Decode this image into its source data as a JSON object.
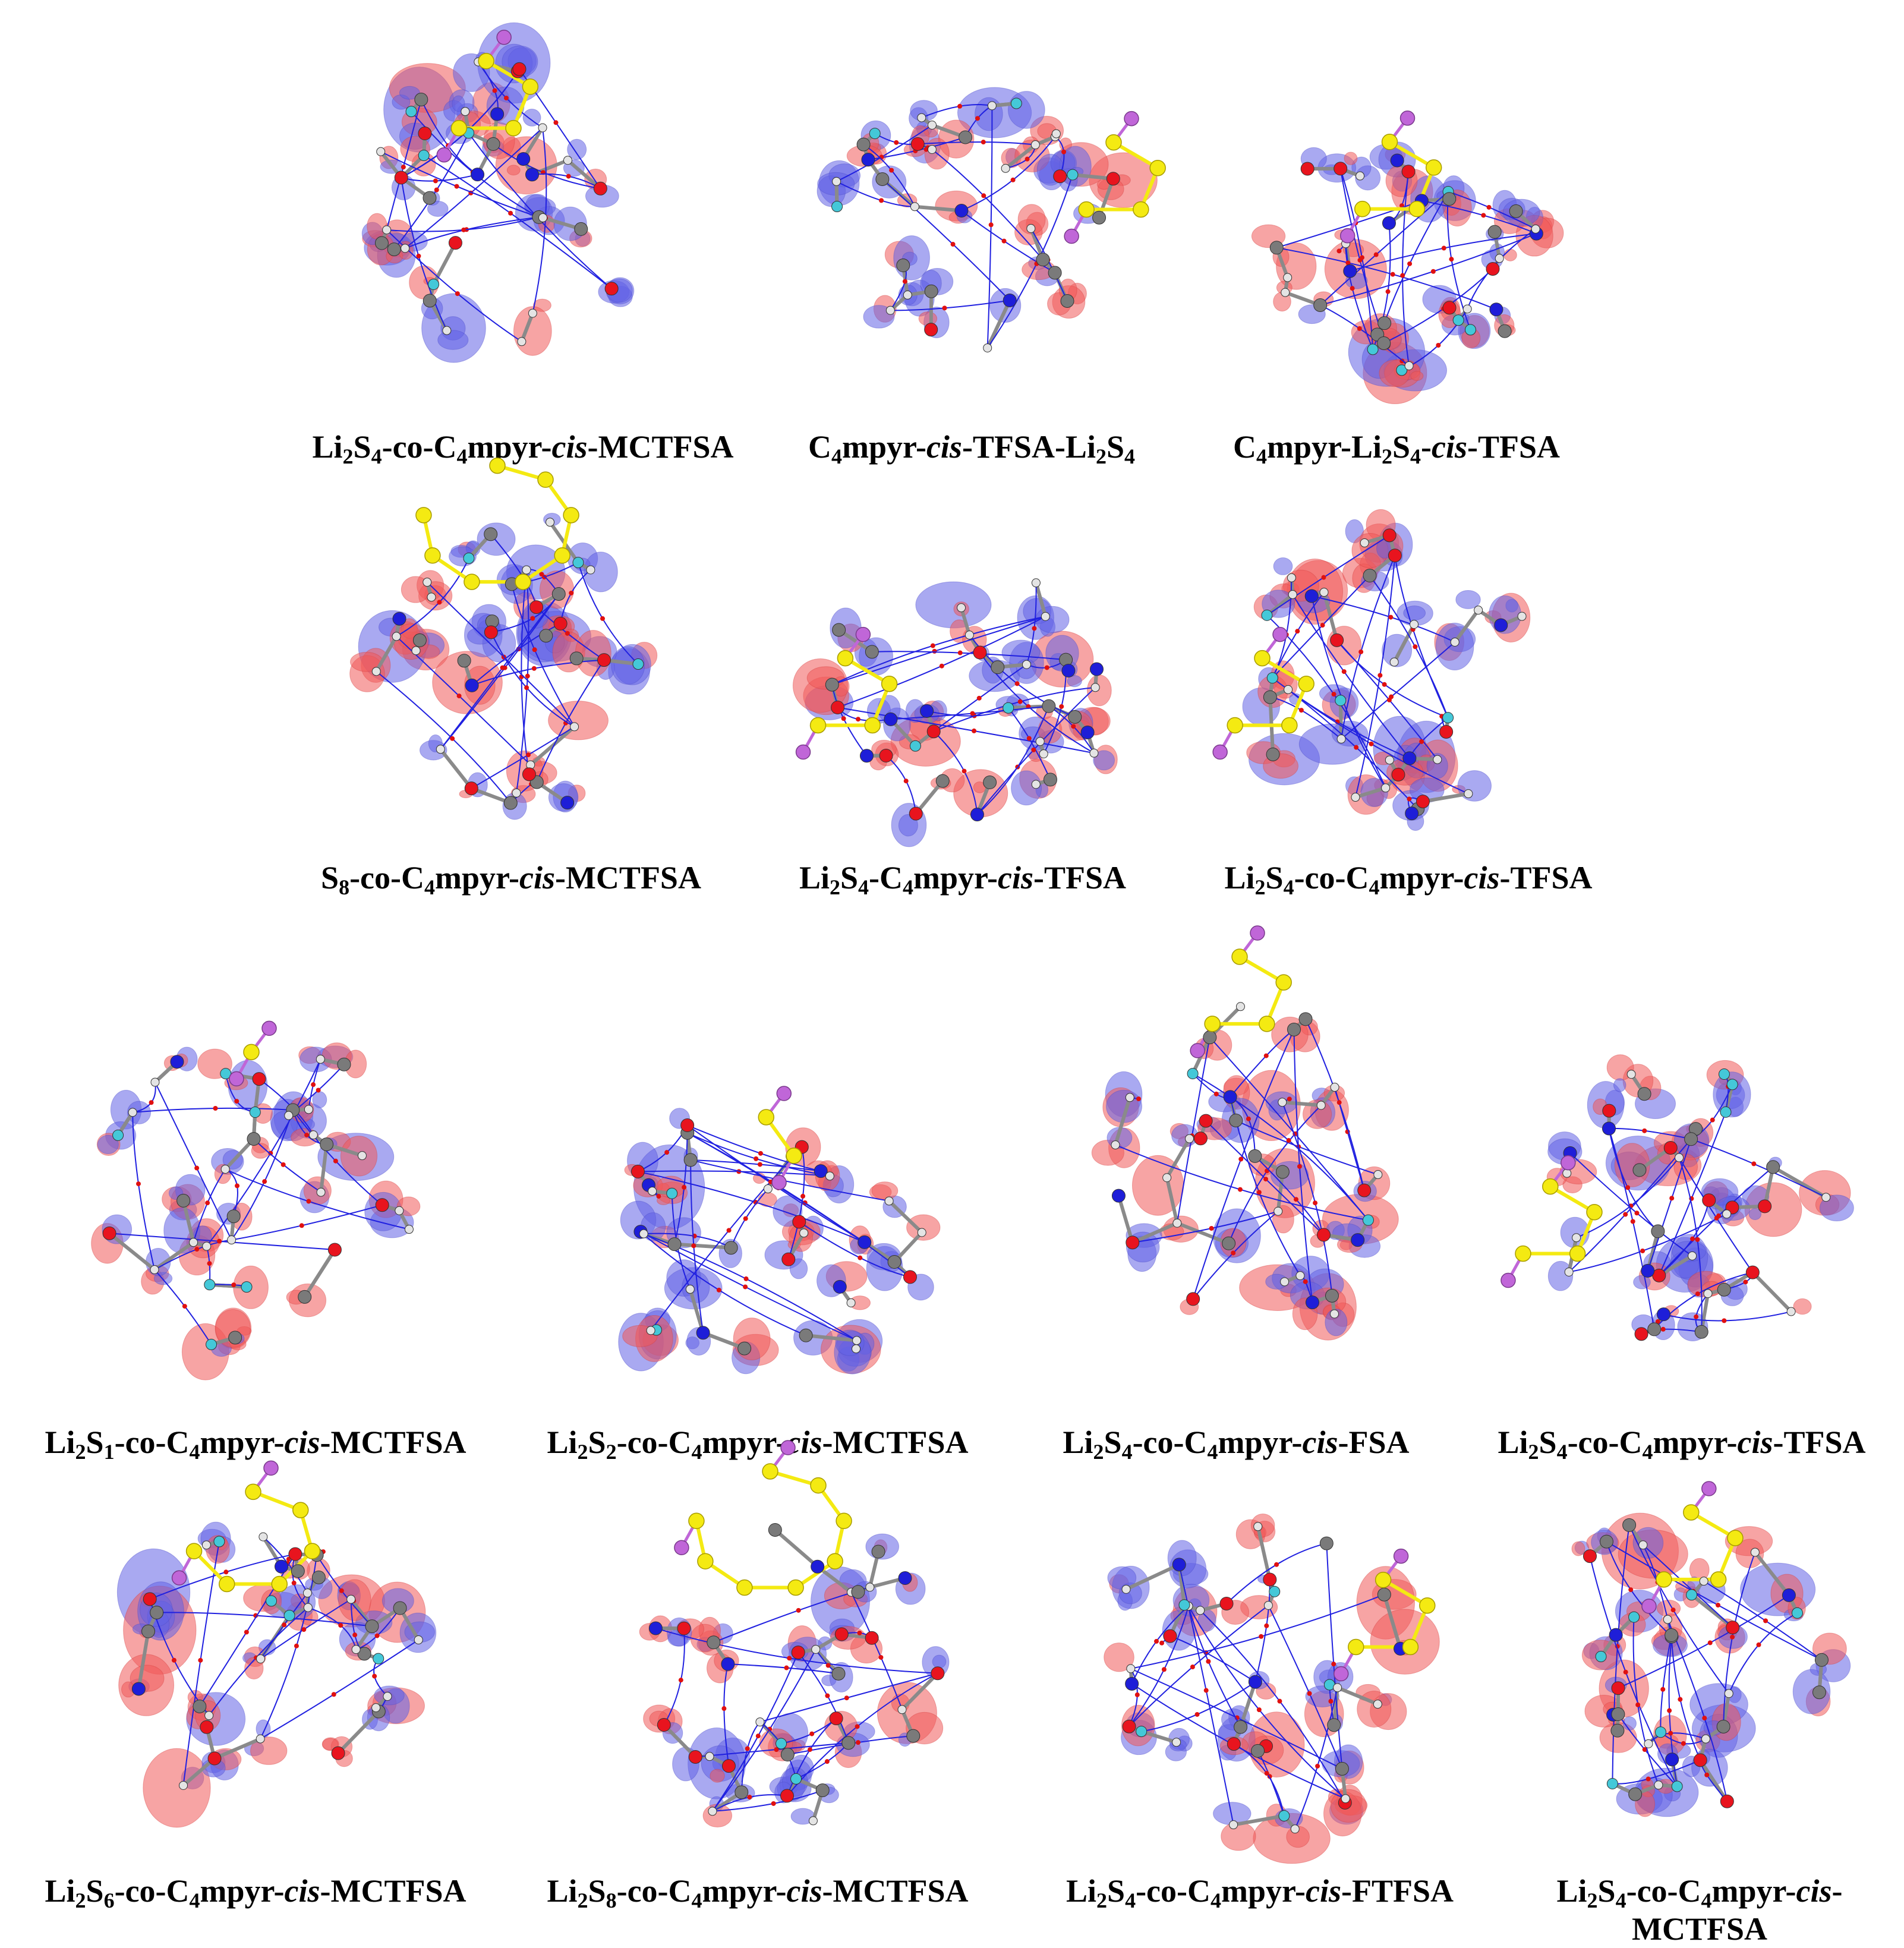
{
  "figure": {
    "colors": {
      "positive_isosurface": "#f05a5a",
      "negative_isosurface": "#6262e6",
      "sulfur": "#f4ea12",
      "lithium": "#c066d8",
      "oxygen": "#e8141e",
      "nitrogen": "#1e1ed8",
      "carbon": "#7a7a7a",
      "hydrogen": "#e4e4e4",
      "fluorine": "#44c8d8",
      "bond_path": "#2020e0",
      "critical_point": "#e01010",
      "li_s_bond": "#c066d8"
    },
    "panels": [
      {
        "id": "p1",
        "caption_parts": [
          {
            "t": "Li"
          },
          {
            "sub": "2"
          },
          {
            "t": "S"
          },
          {
            "sub": "4"
          },
          {
            "t": "-co-C"
          },
          {
            "sub": "4"
          },
          {
            "t": "mpyr-"
          },
          {
            "i": "cis"
          },
          {
            "t": "-MCTFSA"
          }
        ]
      },
      {
        "id": "p2",
        "caption_parts": [
          {
            "t": "C"
          },
          {
            "sub": "4"
          },
          {
            "t": "mpyr-"
          },
          {
            "i": "cis"
          },
          {
            "t": "-TFSA-Li"
          },
          {
            "sub": "2"
          },
          {
            "t": "S"
          },
          {
            "sub": "4"
          }
        ]
      },
      {
        "id": "p3",
        "caption_parts": [
          {
            "t": "C"
          },
          {
            "sub": "4"
          },
          {
            "t": "mpyr-Li"
          },
          {
            "sub": "2"
          },
          {
            "t": "S"
          },
          {
            "sub": "4"
          },
          {
            "t": "-"
          },
          {
            "i": "cis"
          },
          {
            "t": "-TFSA"
          }
        ]
      },
      {
        "id": "p4",
        "caption_parts": [
          {
            "t": "S"
          },
          {
            "sub": "8"
          },
          {
            "t": "-co-C"
          },
          {
            "sub": "4"
          },
          {
            "t": "mpyr-"
          },
          {
            "i": "cis"
          },
          {
            "t": "-MCTFSA"
          }
        ]
      },
      {
        "id": "p5",
        "caption_parts": [
          {
            "t": "Li"
          },
          {
            "sub": "2"
          },
          {
            "t": "S"
          },
          {
            "sub": "4"
          },
          {
            "t": "-C"
          },
          {
            "sub": "4"
          },
          {
            "t": "mpyr-"
          },
          {
            "i": "cis"
          },
          {
            "t": "-TFSA"
          }
        ]
      },
      {
        "id": "p6",
        "caption_parts": [
          {
            "t": "Li"
          },
          {
            "sub": "2"
          },
          {
            "t": "S"
          },
          {
            "sub": "4"
          },
          {
            "t": "-co-C"
          },
          {
            "sub": "4"
          },
          {
            "t": "mpyr-"
          },
          {
            "i": "cis"
          },
          {
            "t": "-TFSA"
          }
        ]
      },
      {
        "id": "p7",
        "caption_parts": [
          {
            "t": "Li"
          },
          {
            "sub": "2"
          },
          {
            "t": "S"
          },
          {
            "sub": "1"
          },
          {
            "t": "-co-C"
          },
          {
            "sub": "4"
          },
          {
            "t": "mpyr-"
          },
          {
            "i": "cis"
          },
          {
            "t": "-MCTFSA"
          }
        ]
      },
      {
        "id": "p8",
        "caption_parts": [
          {
            "t": "Li"
          },
          {
            "sub": "2"
          },
          {
            "t": "S"
          },
          {
            "sub": "2"
          },
          {
            "t": "-co-C"
          },
          {
            "sub": "4"
          },
          {
            "t": "mpyr-"
          },
          {
            "i": "cis"
          },
          {
            "t": "-MCTFSA"
          }
        ]
      },
      {
        "id": "p9",
        "caption_parts": [
          {
            "t": "Li"
          },
          {
            "sub": "2"
          },
          {
            "t": "S"
          },
          {
            "sub": "4"
          },
          {
            "t": "-co-C"
          },
          {
            "sub": "4"
          },
          {
            "t": "mpyr-"
          },
          {
            "i": "cis"
          },
          {
            "t": "-FSA"
          }
        ]
      },
      {
        "id": "p10",
        "caption_parts": [
          {
            "t": "Li"
          },
          {
            "sub": "2"
          },
          {
            "t": "S"
          },
          {
            "sub": "4"
          },
          {
            "t": "-co-C"
          },
          {
            "sub": "4"
          },
          {
            "t": "mpyr-"
          },
          {
            "i": "cis"
          },
          {
            "t": "-TFSA"
          }
        ]
      },
      {
        "id": "p11",
        "caption_parts": [
          {
            "t": "Li"
          },
          {
            "sub": "2"
          },
          {
            "t": "S"
          },
          {
            "sub": "6"
          },
          {
            "t": "-co-C"
          },
          {
            "sub": "4"
          },
          {
            "t": "mpyr-"
          },
          {
            "i": "cis"
          },
          {
            "t": "-MCTFSA"
          }
        ]
      },
      {
        "id": "p12",
        "caption_parts": [
          {
            "t": "Li"
          },
          {
            "sub": "2"
          },
          {
            "t": "S"
          },
          {
            "sub": "8"
          },
          {
            "t": "-co-C"
          },
          {
            "sub": "4"
          },
          {
            "t": "mpyr-"
          },
          {
            "i": "cis"
          },
          {
            "t": "-MCTFSA"
          }
        ]
      },
      {
        "id": "p13",
        "caption_parts": [
          {
            "t": "Li"
          },
          {
            "sub": "2"
          },
          {
            "t": "S"
          },
          {
            "sub": "4"
          },
          {
            "t": "-co-C"
          },
          {
            "sub": "4"
          },
          {
            "t": "mpyr-"
          },
          {
            "i": "cis"
          },
          {
            "t": "-FTFSA"
          }
        ]
      },
      {
        "id": "p14",
        "caption_parts": [
          {
            "t": "Li"
          },
          {
            "sub": "2"
          },
          {
            "t": "S"
          },
          {
            "sub": "4"
          },
          {
            "t": "-co-C"
          },
          {
            "sub": "4"
          },
          {
            "t": "mpyr-"
          },
          {
            "i": "cis"
          },
          {
            "t": "-"
          },
          {
            "br": true
          },
          {
            "t": "MCTFSA"
          }
        ]
      }
    ]
  }
}
